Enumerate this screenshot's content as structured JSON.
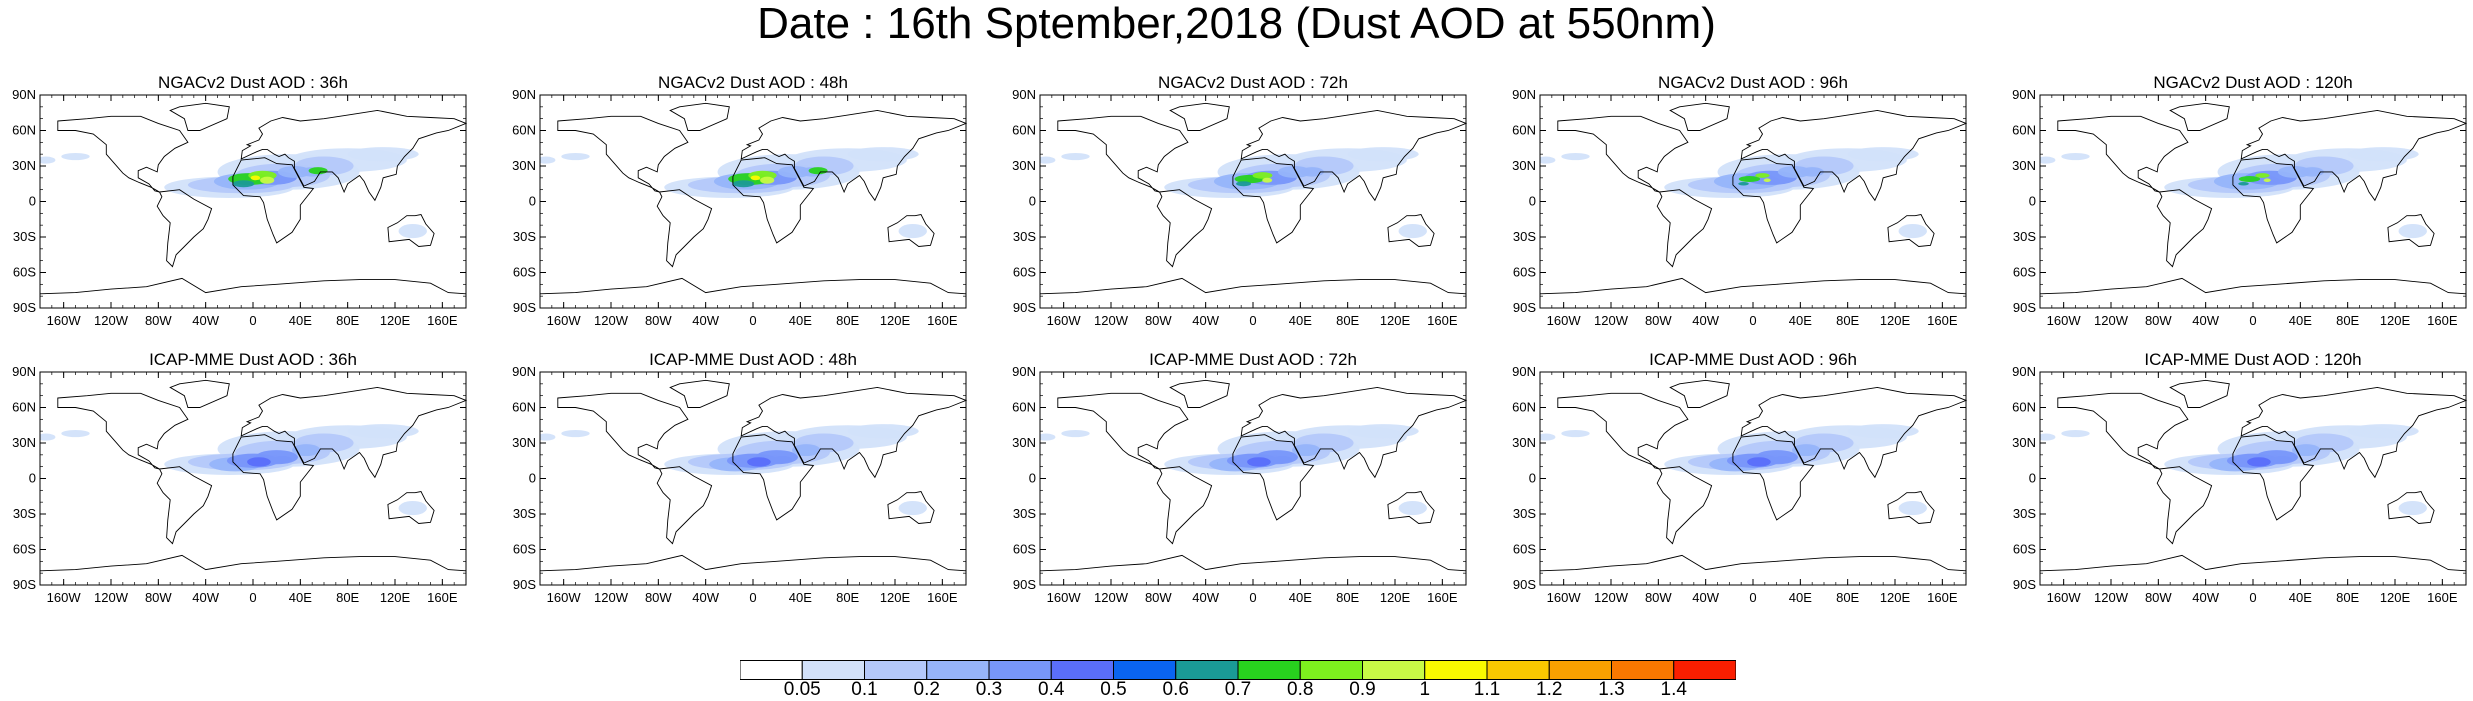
{
  "title": "Date : 16th Sptember,2018 (Dust AOD at 550nm)",
  "lat_labels": [
    "90N",
    "60N",
    "30N",
    "0",
    "30S",
    "60S",
    "90S"
  ],
  "lon_labels": [
    "160W",
    "120W",
    "80W",
    "40W",
    "0",
    "40E",
    "80E",
    "120E",
    "160E"
  ],
  "panels": [
    {
      "title": "NGACv2 Dust AOD : 36h",
      "model": "NGACv2",
      "lead_hours": 36
    },
    {
      "title": "NGACv2 Dust AOD : 48h",
      "model": "NGACv2",
      "lead_hours": 48
    },
    {
      "title": "NGACv2 Dust AOD : 72h",
      "model": "NGACv2",
      "lead_hours": 72
    },
    {
      "title": "NGACv2 Dust AOD : 96h",
      "model": "NGACv2",
      "lead_hours": 96
    },
    {
      "title": "NGACv2 Dust AOD : 120h",
      "model": "NGACv2",
      "lead_hours": 120
    },
    {
      "title": "ICAP-MME Dust AOD : 36h",
      "model": "ICAP-MME",
      "lead_hours": 36
    },
    {
      "title": "ICAP-MME Dust AOD : 48h",
      "model": "ICAP-MME",
      "lead_hours": 48
    },
    {
      "title": "ICAP-MME Dust AOD : 72h",
      "model": "ICAP-MME",
      "lead_hours": 72
    },
    {
      "title": "ICAP-MME Dust AOD : 96h",
      "model": "ICAP-MME",
      "lead_hours": 96
    },
    {
      "title": "ICAP-MME Dust AOD : 120h",
      "model": "ICAP-MME",
      "lead_hours": 120
    }
  ],
  "colorbar": {
    "labels": [
      "0.05",
      "0.1",
      "0.2",
      "0.3",
      "0.4",
      "0.5",
      "0.6",
      "0.7",
      "0.8",
      "0.9",
      "1",
      "1.1",
      "1.2",
      "1.3",
      "1.4"
    ],
    "colors": [
      "#ffffff",
      "#d2e1fa",
      "#b4c8fa",
      "#96b4fa",
      "#7896fa",
      "#5a6efa",
      "#0a64f0",
      "#1a9a96",
      "#28d21e",
      "#7df01e",
      "#c8fa46",
      "#fafa00",
      "#fac800",
      "#faa000",
      "#fa7800",
      "#fa1e00"
    ]
  }
}
